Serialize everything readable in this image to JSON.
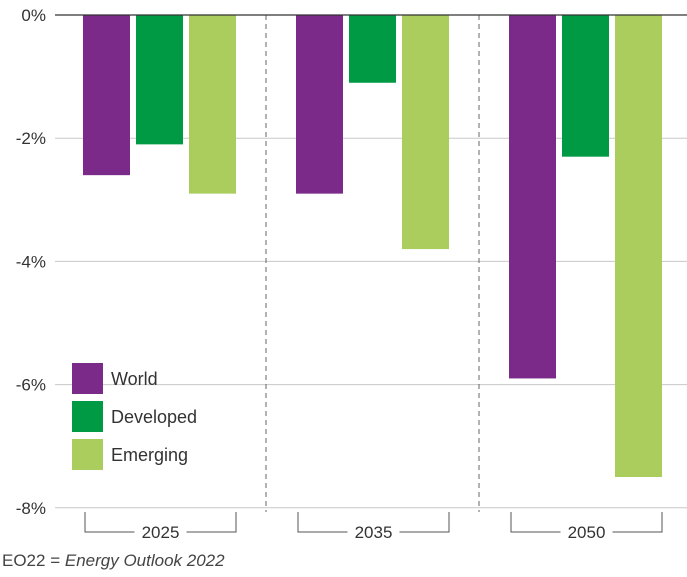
{
  "chart_data": {
    "type": "bar",
    "categories": [
      "2025",
      "2035",
      "2050"
    ],
    "series": [
      {
        "name": "World",
        "color": "#7b2a8a",
        "values": [
          -2.6,
          -2.9,
          -5.9
        ]
      },
      {
        "name": "Developed",
        "color": "#009a44",
        "values": [
          -2.1,
          -1.1,
          -2.3
        ]
      },
      {
        "name": "Emerging",
        "color": "#aacd5e",
        "values": [
          -2.9,
          -3.8,
          -7.5
        ]
      }
    ],
    "yticks": [
      0,
      -2,
      -4,
      -6,
      -8
    ],
    "ytick_labels": [
      "0%",
      "-2%",
      "-4%",
      "-6%",
      "-8%"
    ],
    "ylim": [
      -8,
      0
    ],
    "grid": true,
    "legend_position": "bottom-left",
    "title": "",
    "xlabel": "",
    "ylabel": ""
  },
  "footnote": {
    "prefix": "EO22 = ",
    "emphasis": "Energy Outlook 2022"
  }
}
